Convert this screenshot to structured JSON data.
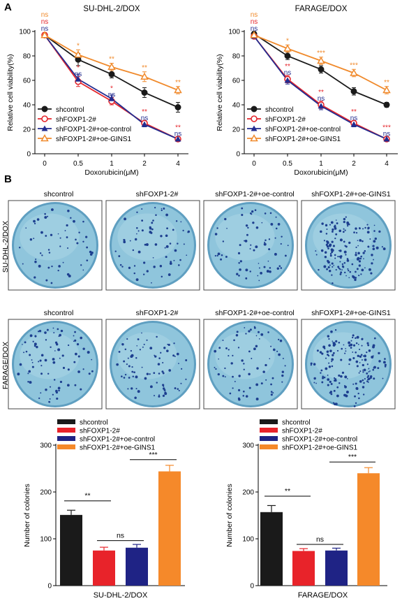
{
  "panels": {
    "a": "A",
    "b": "B"
  },
  "line_style": {
    "colors": [
      "#1a1a1a",
      "#e5252b",
      "#232c8f",
      "#f08a2c"
    ],
    "markers": [
      "filled-circle",
      "open-circle",
      "filled-triangle",
      "open-triangle"
    ]
  },
  "bar_style": {
    "colors": [
      "#1a1a1a",
      "#e8232a",
      "#1f2385",
      "#f5892a"
    ]
  },
  "plates": {
    "titles": [
      "shcontrol",
      "shFOXP1-2#",
      "shFOXP1-2#+oe-control",
      "shFOXP1-2#+oe-GINS1"
    ],
    "rows": [
      "SU-DHL-2/DOX",
      "FARAGE/DOX"
    ],
    "dish_color": "#8fc5dc",
    "colony_color": "#1d3f8f"
  },
  "chart_data": [
    {
      "type": "line",
      "title": "SU-DHL-2/DOX",
      "xlabel": "Doxorubicin(μM)",
      "ylabel": "Relative cell viability(%)",
      "categories": [
        "0",
        "0.5",
        "1",
        "2",
        "4"
      ],
      "ylim": [
        0,
        100
      ],
      "yticks": [
        "0",
        "20",
        "40",
        "60",
        "80",
        "100"
      ],
      "legend": "bottom-left",
      "series": [
        {
          "name": "shcontrol",
          "values": [
            97,
            77,
            65,
            50,
            38
          ],
          "errors": [
            2,
            5,
            3,
            4,
            4
          ]
        },
        {
          "name": "shFOXP1-2#",
          "values": [
            97,
            59,
            43,
            25,
            12
          ],
          "errors": [
            2,
            4,
            3,
            2,
            2
          ]
        },
        {
          "name": "shFOXP1-2#+oe-control",
          "values": [
            97,
            61,
            45,
            24,
            12
          ],
          "errors": [
            2,
            4,
            3,
            2,
            2
          ]
        },
        {
          "name": "shFOXP1-2#+oe-GINS1",
          "values": [
            97,
            81,
            71,
            63,
            52
          ],
          "errors": [
            2,
            4,
            3,
            4,
            3
          ]
        }
      ],
      "annotations": [
        {
          "x": "0",
          "labels": [
            "ns",
            "ns",
            "ns"
          ]
        },
        {
          "x": "0.5",
          "labels": [
            "*",
            "*",
            "ns"
          ]
        },
        {
          "x": "1",
          "labels": [
            "**",
            "*",
            "ns"
          ]
        },
        {
          "x": "2",
          "labels": [
            "**",
            "**",
            "ns"
          ]
        },
        {
          "x": "4",
          "labels": [
            "**",
            "**",
            "ns"
          ]
        }
      ]
    },
    {
      "type": "line",
      "title": "FARAGE/DOX",
      "xlabel": "Doxorubicin(μM)",
      "ylabel": "Relative cell viability(%)",
      "categories": [
        "0",
        "0.5",
        "1",
        "2",
        "4"
      ],
      "ylim": [
        0,
        100
      ],
      "yticks": [
        "0",
        "20",
        "40",
        "60",
        "80",
        "100"
      ],
      "legend": "bottom-left",
      "series": [
        {
          "name": "shcontrol",
          "values": [
            98,
            80,
            69,
            51,
            40
          ],
          "errors": [
            2,
            3,
            3,
            3,
            2
          ]
        },
        {
          "name": "shFOXP1-2#",
          "values": [
            96,
            61,
            40,
            25,
            12
          ],
          "errors": [
            2,
            3,
            3,
            2,
            2
          ]
        },
        {
          "name": "shFOXP1-2#+oe-control",
          "values": [
            96,
            60,
            39,
            24,
            12
          ],
          "errors": [
            2,
            3,
            3,
            2,
            2
          ]
        },
        {
          "name": "shFOXP1-2#+oe-GINS1",
          "values": [
            97,
            86,
            76,
            66,
            52
          ],
          "errors": [
            2,
            3,
            3,
            3,
            3
          ]
        }
      ],
      "annotations": [
        {
          "x": "0",
          "labels": [
            "ns",
            "ns",
            "ns"
          ]
        },
        {
          "x": "0.5",
          "labels": [
            "*",
            "**",
            "ns"
          ]
        },
        {
          "x": "1",
          "labels": [
            "***",
            "**",
            "ns"
          ]
        },
        {
          "x": "2",
          "labels": [
            "***",
            "**",
            "ns"
          ]
        },
        {
          "x": "4",
          "labels": [
            "**",
            "***",
            "ns"
          ]
        }
      ]
    },
    {
      "type": "bar",
      "title": "",
      "xlabel": "SU-DHL-2/DOX",
      "ylabel": "Number of colonies",
      "categories": [
        "shcontrol",
        "shFOXP1-2#",
        "shFOXP1-2#+oe-control",
        "shFOXP1-2#+oe-GINS1"
      ],
      "values": [
        151,
        75,
        81,
        244
      ],
      "errors": [
        10,
        7,
        7,
        13
      ],
      "ylim": [
        0,
        300
      ],
      "yticks": [
        "0",
        "100",
        "200",
        "300"
      ],
      "legend": "top-left",
      "brackets": [
        {
          "from": 0,
          "to": 1,
          "label": "**"
        },
        {
          "from": 1,
          "to": 2,
          "label": "ns"
        },
        {
          "from": 2,
          "to": 3,
          "label": "***"
        }
      ]
    },
    {
      "type": "bar",
      "title": "",
      "xlabel": "FARAGE/DOX",
      "ylabel": "Number of colonies",
      "categories": [
        "shcontrol",
        "shFOXP1-2#",
        "shFOXP1-2#+oe-control",
        "shFOXP1-2#+oe-GINS1"
      ],
      "values": [
        157,
        74,
        75,
        240
      ],
      "errors": [
        14,
        5,
        5,
        12
      ],
      "ylim": [
        0,
        300
      ],
      "yticks": [
        "0",
        "100",
        "200",
        "300"
      ],
      "legend": "top-left",
      "brackets": [
        {
          "from": 0,
          "to": 1,
          "label": "**"
        },
        {
          "from": 1,
          "to": 2,
          "label": "ns"
        },
        {
          "from": 2,
          "to": 3,
          "label": "***"
        }
      ]
    }
  ]
}
